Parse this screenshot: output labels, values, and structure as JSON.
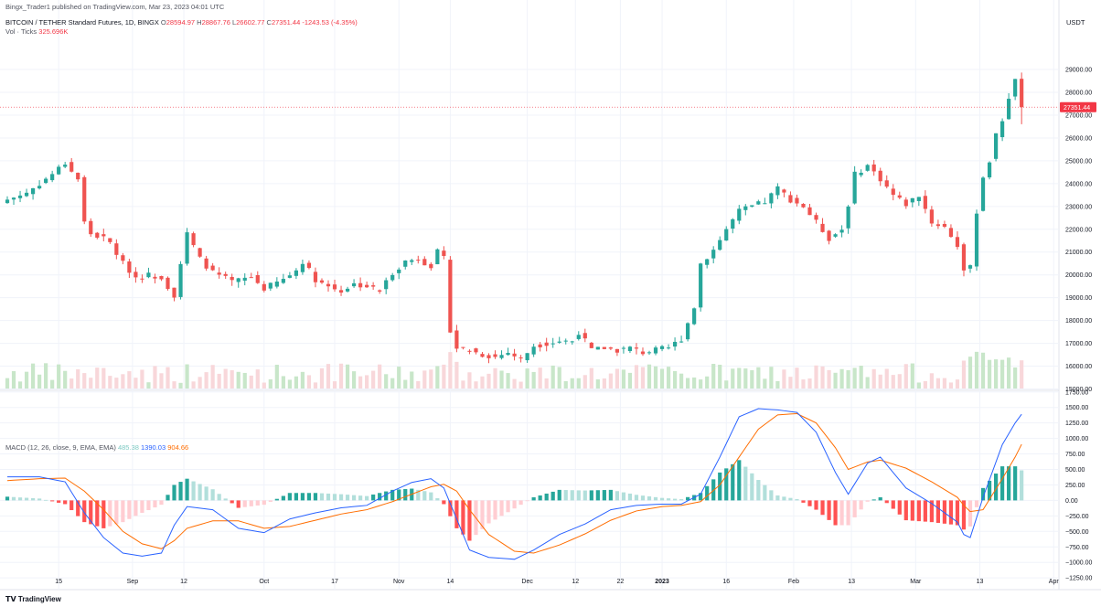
{
  "header": {
    "publisher_line": "Bingx_Trader1 published on TradingView.com, Mar 23, 2023 04:01 UTC",
    "symbol": "BITCOIN / TETHER Standard Futures, 1D, BINGX",
    "ohlc": {
      "o_label": "O",
      "o": "28594.97",
      "h_label": "H",
      "h": "28867.76",
      "l_label": "L",
      "l": "26602.77",
      "c_label": "C",
      "c": "27351.44",
      "change": "-1243.53 (-4.35%)"
    },
    "vol_label": "Vol · Ticks",
    "vol_value": "325.696K",
    "macd_label": "MACD (12, 26, close, 9, EMA, EMA)",
    "macd_hist": "485.38",
    "macd_line": "1390.03",
    "macd_signal": "904.66"
  },
  "price_axis": {
    "unit": "USDT",
    "labels": [
      "29000.00",
      "28000.00",
      "27000.00",
      "26000.00",
      "25000.00",
      "24000.00",
      "23000.00",
      "22000.00",
      "21000.00",
      "20000.00",
      "19000.00",
      "18000.00",
      "17000.00",
      "16000.00",
      "15000.00"
    ],
    "last_price_tag": "27351.44",
    "last_price_color": "#f23645"
  },
  "macd_axis": {
    "labels": [
      "1750.00",
      "1500.00",
      "1250.00",
      "1000.00",
      "750.00",
      "500.00",
      "250.00",
      "0.00",
      "−250.00",
      "−500.00",
      "−750.00",
      "−1000.00",
      "−1250.00"
    ]
  },
  "time_axis": {
    "labels": [
      "15",
      "Sep",
      "12",
      "Oct",
      "17",
      "Nov",
      "14",
      "Dec",
      "12",
      "22",
      "2023",
      "16",
      "Feb",
      "13",
      "Mar",
      "13",
      "Apr"
    ]
  },
  "footer": {
    "logo_text": "TradingView"
  },
  "colors": {
    "up": "#26a69a",
    "down": "#ef5350",
    "vol_up": "#c8e6c9",
    "vol_down": "#f8d7da",
    "macd_line": "#2962ff",
    "signal_line": "#ff6d00",
    "hist_up_strong": "#26a69a",
    "hist_up_weak": "#b2dfdb",
    "hist_down_strong": "#ff5252",
    "hist_down_weak": "#ffcdd2",
    "grid": "#f0f3fa"
  },
  "chart_data": {
    "type": "candlestick",
    "interval": "1D",
    "price_keyframes": [
      [
        0,
        23300
      ],
      [
        3,
        23600
      ],
      [
        6,
        24200
      ],
      [
        9,
        24900
      ],
      [
        11,
        24200
      ],
      [
        12,
        22300
      ],
      [
        13,
        21800
      ],
      [
        15,
        21600
      ],
      [
        16,
        21400
      ],
      [
        18,
        20500
      ],
      [
        20,
        19900
      ],
      [
        22,
        20000
      ],
      [
        24,
        19900
      ],
      [
        26,
        19100
      ],
      [
        27,
        20500
      ],
      [
        28,
        21800
      ],
      [
        30,
        20700
      ],
      [
        32,
        20100
      ],
      [
        35,
        19700
      ],
      [
        38,
        19900
      ],
      [
        40,
        19400
      ],
      [
        43,
        19800
      ],
      [
        45,
        20200
      ],
      [
        46,
        20600
      ],
      [
        48,
        19800
      ],
      [
        50,
        19500
      ],
      [
        52,
        19300
      ],
      [
        54,
        19600
      ],
      [
        56,
        19500
      ],
      [
        58,
        19300
      ],
      [
        60,
        20100
      ],
      [
        62,
        20600
      ],
      [
        64,
        20700
      ],
      [
        66,
        20400
      ],
      [
        67,
        21000
      ],
      [
        68,
        20700
      ],
      [
        69,
        17600
      ],
      [
        70,
        16800
      ],
      [
        72,
        16700
      ],
      [
        74,
        16500
      ],
      [
        76,
        16400
      ],
      [
        78,
        16600
      ],
      [
        80,
        16300
      ],
      [
        82,
        16900
      ],
      [
        84,
        17000
      ],
      [
        86,
        17100
      ],
      [
        88,
        17100
      ],
      [
        89,
        17500
      ],
      [
        91,
        16700
      ],
      [
        93,
        16800
      ],
      [
        95,
        16700
      ],
      [
        97,
        16800
      ],
      [
        99,
        16600
      ],
      [
        101,
        16700
      ],
      [
        103,
        16800
      ],
      [
        105,
        17200
      ],
      [
        106,
        17900
      ],
      [
        107,
        18600
      ],
      [
        108,
        20500
      ],
      [
        110,
        21100
      ],
      [
        112,
        22000
      ],
      [
        114,
        22800
      ],
      [
        116,
        23000
      ],
      [
        118,
        23200
      ],
      [
        120,
        23800
      ],
      [
        122,
        23300
      ],
      [
        124,
        23000
      ],
      [
        126,
        22300
      ],
      [
        128,
        21600
      ],
      [
        130,
        22000
      ],
      [
        131,
        23100
      ],
      [
        132,
        24400
      ],
      [
        134,
        24800
      ],
      [
        136,
        24200
      ],
      [
        138,
        23500
      ],
      [
        140,
        23100
      ],
      [
        142,
        23500
      ],
      [
        144,
        22300
      ],
      [
        146,
        22100
      ],
      [
        148,
        21300
      ],
      [
        149,
        20200
      ],
      [
        150,
        20300
      ],
      [
        151,
        22800
      ],
      [
        152,
        24300
      ],
      [
        153,
        25000
      ],
      [
        154,
        26100
      ],
      [
        155,
        26800
      ],
      [
        156,
        27800
      ],
      [
        157,
        28500
      ],
      [
        158,
        27351.44
      ]
    ],
    "last_candle": {
      "open": 28594.97,
      "high": 28867.76,
      "low": 26602.77,
      "close": 27351.44
    },
    "macd_keyframes": [
      [
        0,
        380,
        320
      ],
      [
        5,
        380,
        350
      ],
      [
        9,
        300,
        360
      ],
      [
        12,
        -200,
        150
      ],
      [
        15,
        -600,
        -150
      ],
      [
        18,
        -850,
        -500
      ],
      [
        21,
        -900,
        -700
      ],
      [
        24,
        -850,
        -780
      ],
      [
        26,
        -400,
        -650
      ],
      [
        28,
        -100,
        -450
      ],
      [
        32,
        -150,
        -330
      ],
      [
        36,
        -450,
        -330
      ],
      [
        40,
        -520,
        -450
      ],
      [
        44,
        -300,
        -420
      ],
      [
        48,
        -200,
        -320
      ],
      [
        52,
        -120,
        -220
      ],
      [
        56,
        -80,
        -150
      ],
      [
        60,
        150,
        -20
      ],
      [
        63,
        290,
        100
      ],
      [
        66,
        350,
        220
      ],
      [
        68,
        200,
        260
      ],
      [
        70,
        -300,
        150
      ],
      [
        72,
        -800,
        -150
      ],
      [
        75,
        -920,
        -550
      ],
      [
        79,
        -950,
        -820
      ],
      [
        82,
        -800,
        -850
      ],
      [
        86,
        -550,
        -720
      ],
      [
        90,
        -380,
        -540
      ],
      [
        94,
        -150,
        -320
      ],
      [
        98,
        -80,
        -170
      ],
      [
        102,
        -60,
        -100
      ],
      [
        105,
        -60,
        -80
      ],
      [
        108,
        100,
        -20
      ],
      [
        111,
        700,
        250
      ],
      [
        114,
        1350,
        700
      ],
      [
        117,
        1480,
        1150
      ],
      [
        120,
        1460,
        1380
      ],
      [
        123,
        1420,
        1400
      ],
      [
        126,
        1100,
        1250
      ],
      [
        129,
        450,
        850
      ],
      [
        131,
        100,
        500
      ],
      [
        134,
        600,
        620
      ],
      [
        136,
        700,
        650
      ],
      [
        140,
        200,
        520
      ],
      [
        144,
        -50,
        300
      ],
      [
        148,
        -350,
        50
      ],
      [
        149,
        -550,
        -80
      ],
      [
        150,
        -600,
        -180
      ],
      [
        152,
        50,
        -150
      ],
      [
        155,
        900,
        350
      ],
      [
        157,
        1250,
        700
      ],
      [
        158,
        1390.03,
        904.66
      ]
    ]
  }
}
